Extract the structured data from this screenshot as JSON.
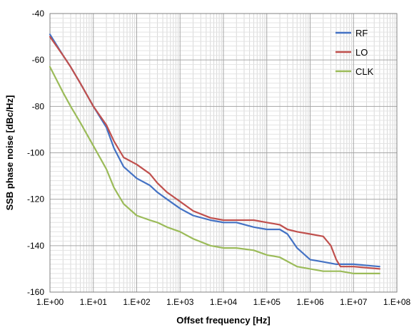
{
  "chart_data": {
    "type": "line",
    "title": "",
    "xlabel": "Offset frequency [Hz]",
    "ylabel": "SSB phase noise [dBc/Hz]",
    "xscale": "log",
    "xlim": [
      1,
      100000000
    ],
    "ylim": [
      -160,
      -40
    ],
    "xticks": [
      "1.E+00",
      "1.E+01",
      "1.E+02",
      "1.E+03",
      "1.E+04",
      "1.E+05",
      "1.E+06",
      "1.E+07",
      "1.E+08"
    ],
    "yticks": [
      "-40",
      "-60",
      "-80",
      "-100",
      "-120",
      "-140",
      "-160"
    ],
    "grid": true,
    "legend_position": "top-right",
    "series": [
      {
        "name": "RF",
        "color": "#4472C4",
        "x": [
          1,
          2,
          3,
          5,
          10,
          20,
          30,
          50,
          100,
          200,
          300,
          500,
          1000,
          2000,
          5000,
          10000,
          20000,
          50000,
          100000,
          200000,
          300000,
          500000,
          1000000,
          2000000,
          4000000,
          10000000,
          40000000
        ],
        "y": [
          -49,
          -58,
          -63,
          -70,
          -80,
          -89,
          -98,
          -106,
          -111,
          -114,
          -117,
          -120,
          -124,
          -127,
          -129,
          -130,
          -130,
          -132,
          -133,
          -133,
          -135,
          -141,
          -146,
          -147,
          -148,
          -148,
          -149
        ]
      },
      {
        "name": "LO",
        "color": "#C0504D",
        "x": [
          1,
          2,
          3,
          5,
          10,
          20,
          30,
          50,
          100,
          200,
          300,
          500,
          1000,
          2000,
          5000,
          10000,
          20000,
          50000,
          100000,
          200000,
          300000,
          500000,
          1000000,
          2000000,
          3000000,
          4000000,
          5000000,
          10000000,
          40000000
        ],
        "y": [
          -50,
          -58,
          -63,
          -70,
          -80,
          -88,
          -95,
          -102,
          -105,
          -109,
          -113,
          -117,
          -121,
          -125,
          -128,
          -129,
          -129,
          -129,
          -130,
          -131,
          -133,
          -134,
          -135,
          -136,
          -140,
          -146,
          -149,
          -149,
          -150
        ]
      },
      {
        "name": "CLK",
        "color": "#9BBB59",
        "x": [
          1,
          2,
          3,
          5,
          10,
          20,
          30,
          50,
          100,
          200,
          300,
          500,
          1000,
          2000,
          5000,
          10000,
          20000,
          50000,
          100000,
          200000,
          500000,
          1000000,
          2000000,
          5000000,
          10000000,
          40000000
        ],
        "y": [
          -63,
          -74,
          -80,
          -87,
          -97,
          -107,
          -115,
          -122,
          -127,
          -129,
          -130,
          -132,
          -134,
          -137,
          -140,
          -141,
          -141,
          -142,
          -144,
          -145,
          -149,
          -150,
          -151,
          -151,
          -152,
          -152
        ]
      }
    ]
  }
}
